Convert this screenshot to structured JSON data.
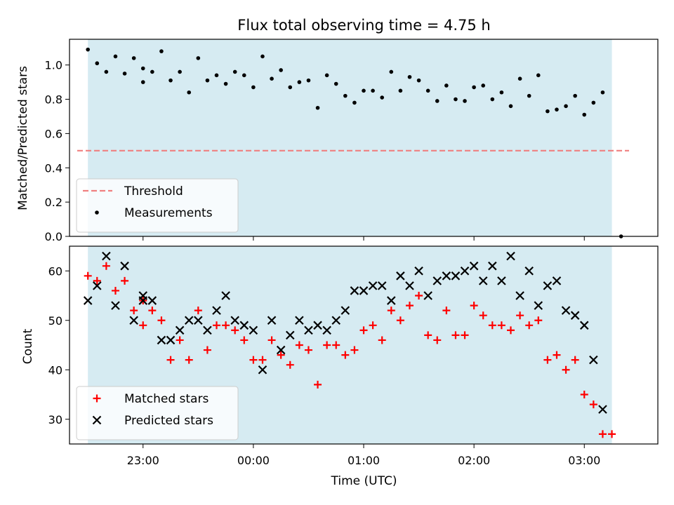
{
  "chart_data": [
    {
      "type": "scatter",
      "title": "Flux total observing time = 4.75 h",
      "xlabel": "",
      "ylabel": "Matched/Predicted stars",
      "ylim": [
        0,
        1.15
      ],
      "yticks": [
        "0.0",
        "0.2",
        "0.4",
        "0.6",
        "0.8",
        "1.0"
      ],
      "xlim": [
        "22:20",
        "03:40"
      ],
      "observing_window": [
        "22:30",
        "03:15"
      ],
      "observing_window_color": "#add8e6",
      "threshold": {
        "name": "Threshold",
        "value": 0.5,
        "color": "#f08080"
      },
      "legend_position": "lower-left",
      "series": [
        {
          "name": "Measurements",
          "color": "#000000",
          "marker": "dot",
          "points": [
            [
              "22:30",
              1.09
            ],
            [
              "22:35",
              1.01
            ],
            [
              "22:40",
              0.96
            ],
            [
              "22:45",
              1.05
            ],
            [
              "22:50",
              0.95
            ],
            [
              "22:55",
              1.04
            ],
            [
              "23:00",
              0.98
            ],
            [
              "23:00",
              0.9
            ],
            [
              "23:05",
              0.96
            ],
            [
              "23:10",
              1.08
            ],
            [
              "23:15",
              0.91
            ],
            [
              "23:20",
              0.96
            ],
            [
              "23:25",
              0.84
            ],
            [
              "23:30",
              1.04
            ],
            [
              "23:35",
              0.91
            ],
            [
              "23:40",
              0.94
            ],
            [
              "23:45",
              0.89
            ],
            [
              "23:50",
              0.96
            ],
            [
              "23:55",
              0.94
            ],
            [
              "00:00",
              0.87
            ],
            [
              "00:05",
              1.05
            ],
            [
              "00:10",
              0.92
            ],
            [
              "00:15",
              0.97
            ],
            [
              "00:20",
              0.87
            ],
            [
              "00:25",
              0.9
            ],
            [
              "00:30",
              0.91
            ],
            [
              "00:35",
              0.75
            ],
            [
              "00:40",
              0.94
            ],
            [
              "00:45",
              0.89
            ],
            [
              "00:50",
              0.82
            ],
            [
              "00:55",
              0.78
            ],
            [
              "01:00",
              0.85
            ],
            [
              "01:05",
              0.85
            ],
            [
              "01:10",
              0.81
            ],
            [
              "01:15",
              0.96
            ],
            [
              "01:20",
              0.85
            ],
            [
              "01:25",
              0.93
            ],
            [
              "01:30",
              0.91
            ],
            [
              "01:35",
              0.85
            ],
            [
              "01:40",
              0.79
            ],
            [
              "01:45",
              0.88
            ],
            [
              "01:50",
              0.8
            ],
            [
              "01:55",
              0.79
            ],
            [
              "02:00",
              0.87
            ],
            [
              "02:05",
              0.88
            ],
            [
              "02:10",
              0.8
            ],
            [
              "02:15",
              0.84
            ],
            [
              "02:20",
              0.76
            ],
            [
              "02:25",
              0.92
            ],
            [
              "02:30",
              0.82
            ],
            [
              "02:35",
              0.94
            ],
            [
              "02:40",
              0.73
            ],
            [
              "02:45",
              0.74
            ],
            [
              "02:50",
              0.76
            ],
            [
              "02:55",
              0.82
            ],
            [
              "03:00",
              0.71
            ],
            [
              "03:05",
              0.78
            ],
            [
              "03:10",
              0.84
            ],
            [
              "03:20",
              0.0
            ]
          ]
        }
      ]
    },
    {
      "type": "scatter",
      "title": "",
      "xlabel": "Time (UTC)",
      "ylabel": "Count",
      "ylim": [
        25,
        65
      ],
      "yticks": [
        "30",
        "40",
        "50",
        "60"
      ],
      "xlim": [
        "22:20",
        "03:40"
      ],
      "xticks": [
        "23:00",
        "00:00",
        "01:00",
        "02:00",
        "03:00"
      ],
      "observing_window": [
        "22:30",
        "03:15"
      ],
      "observing_window_color": "#add8e6",
      "legend_position": "lower-left",
      "series": [
        {
          "name": "Matched stars",
          "color": "#ff0000",
          "marker": "plus",
          "points": [
            [
              "22:30",
              59
            ],
            [
              "22:35",
              58
            ],
            [
              "22:40",
              61
            ],
            [
              "22:45",
              56
            ],
            [
              "22:50",
              58
            ],
            [
              "22:55",
              52
            ],
            [
              "23:00",
              54
            ],
            [
              "23:00",
              49
            ],
            [
              "23:05",
              52
            ],
            [
              "23:10",
              50
            ],
            [
              "23:15",
              42
            ],
            [
              "23:20",
              46
            ],
            [
              "23:25",
              42
            ],
            [
              "23:30",
              52
            ],
            [
              "23:35",
              44
            ],
            [
              "23:40",
              49
            ],
            [
              "23:45",
              49
            ],
            [
              "23:50",
              48
            ],
            [
              "23:55",
              46
            ],
            [
              "00:00",
              42
            ],
            [
              "00:05",
              42
            ],
            [
              "00:10",
              46
            ],
            [
              "00:15",
              43
            ],
            [
              "00:20",
              41
            ],
            [
              "00:25",
              45
            ],
            [
              "00:30",
              44
            ],
            [
              "00:35",
              37
            ],
            [
              "00:40",
              45
            ],
            [
              "00:45",
              45
            ],
            [
              "00:50",
              43
            ],
            [
              "00:55",
              44
            ],
            [
              "01:00",
              48
            ],
            [
              "01:05",
              49
            ],
            [
              "01:10",
              46
            ],
            [
              "01:15",
              52
            ],
            [
              "01:20",
              50
            ],
            [
              "01:25",
              53
            ],
            [
              "01:30",
              55
            ],
            [
              "01:35",
              47
            ],
            [
              "01:40",
              46
            ],
            [
              "01:45",
              52
            ],
            [
              "01:50",
              47
            ],
            [
              "01:55",
              47
            ],
            [
              "02:00",
              53
            ],
            [
              "02:05",
              51
            ],
            [
              "02:10",
              49
            ],
            [
              "02:15",
              49
            ],
            [
              "02:20",
              48
            ],
            [
              "02:25",
              51
            ],
            [
              "02:30",
              49
            ],
            [
              "02:35",
              50
            ],
            [
              "02:40",
              42
            ],
            [
              "02:45",
              43
            ],
            [
              "02:50",
              40
            ],
            [
              "02:55",
              42
            ],
            [
              "03:00",
              35
            ],
            [
              "03:05",
              33
            ],
            [
              "03:10",
              27
            ],
            [
              "03:15",
              27
            ]
          ]
        },
        {
          "name": "Predicted stars",
          "color": "#000000",
          "marker": "x",
          "points": [
            [
              "22:30",
              54
            ],
            [
              "22:35",
              57
            ],
            [
              "22:40",
              63
            ],
            [
              "22:45",
              53
            ],
            [
              "22:50",
              61
            ],
            [
              "22:55",
              50
            ],
            [
              "23:00",
              55
            ],
            [
              "23:00",
              54
            ],
            [
              "23:05",
              54
            ],
            [
              "23:10",
              46
            ],
            [
              "23:15",
              46
            ],
            [
              "23:20",
              48
            ],
            [
              "23:25",
              50
            ],
            [
              "23:30",
              50
            ],
            [
              "23:35",
              48
            ],
            [
              "23:40",
              52
            ],
            [
              "23:45",
              55
            ],
            [
              "23:50",
              50
            ],
            [
              "23:55",
              49
            ],
            [
              "00:00",
              48
            ],
            [
              "00:05",
              40
            ],
            [
              "00:10",
              50
            ],
            [
              "00:15",
              44
            ],
            [
              "00:20",
              47
            ],
            [
              "00:25",
              50
            ],
            [
              "00:30",
              48
            ],
            [
              "00:35",
              49
            ],
            [
              "00:40",
              48
            ],
            [
              "00:45",
              50
            ],
            [
              "00:50",
              52
            ],
            [
              "00:55",
              56
            ],
            [
              "01:00",
              56
            ],
            [
              "01:05",
              57
            ],
            [
              "01:10",
              57
            ],
            [
              "01:15",
              54
            ],
            [
              "01:20",
              59
            ],
            [
              "01:25",
              57
            ],
            [
              "01:30",
              60
            ],
            [
              "01:35",
              55
            ],
            [
              "01:40",
              58
            ],
            [
              "01:45",
              59
            ],
            [
              "01:50",
              59
            ],
            [
              "01:55",
              60
            ],
            [
              "02:00",
              61
            ],
            [
              "02:05",
              58
            ],
            [
              "02:10",
              61
            ],
            [
              "02:15",
              58
            ],
            [
              "02:20",
              63
            ],
            [
              "02:25",
              55
            ],
            [
              "02:30",
              60
            ],
            [
              "02:35",
              53
            ],
            [
              "02:40",
              57
            ],
            [
              "02:45",
              58
            ],
            [
              "02:50",
              52
            ],
            [
              "02:55",
              51
            ],
            [
              "03:00",
              49
            ],
            [
              "03:05",
              42
            ],
            [
              "03:10",
              32
            ]
          ]
        }
      ]
    }
  ]
}
